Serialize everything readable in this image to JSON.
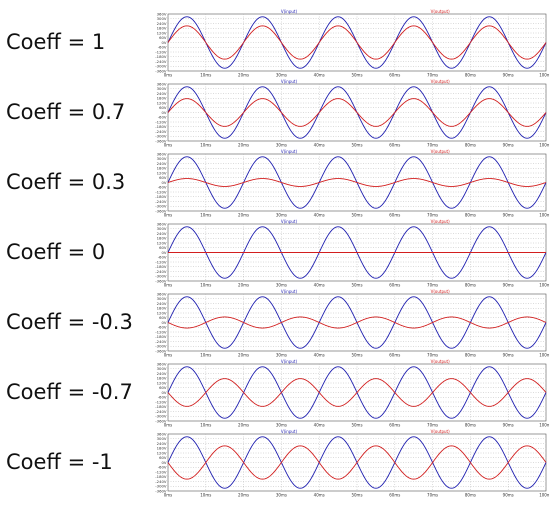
{
  "chart_data": [
    {
      "type": "line",
      "label": "Coeff = 1",
      "x_ticks": [
        "0ms",
        "10ms",
        "20ms",
        "30ms",
        "40ms",
        "50ms",
        "60ms",
        "70ms",
        "80ms",
        "90ms",
        "100ms"
      ],
      "y_ticks": [
        "360V",
        "300V",
        "240V",
        "180V",
        "120V",
        "60V",
        "0V",
        "-60V",
        "-120V",
        "-180V",
        "-240V",
        "-300V",
        "-360V"
      ],
      "xlim": [
        0,
        100
      ],
      "ylim": [
        -360,
        360
      ],
      "grid": true,
      "legend": "top",
      "series": [
        {
          "name": "V(input)",
          "color": "#1f1fb0",
          "function": "sine",
          "amplitude": 325,
          "frequency_hz": 50
        },
        {
          "name": "V(output)",
          "color": "#d21f1f",
          "function": "sine",
          "amplitude": 210,
          "frequency_hz": 50
        }
      ]
    },
    {
      "type": "line",
      "label": "Coeff = 0.7",
      "x_ticks": [
        "0ms",
        "10ms",
        "20ms",
        "30ms",
        "40ms",
        "50ms",
        "60ms",
        "70ms",
        "80ms",
        "90ms",
        "100ms"
      ],
      "y_ticks": [
        "360V",
        "300V",
        "240V",
        "180V",
        "120V",
        "60V",
        "0V",
        "-60V",
        "-120V",
        "-180V",
        "-240V",
        "-300V",
        "-360V"
      ],
      "xlim": [
        0,
        100
      ],
      "ylim": [
        -360,
        360
      ],
      "grid": true,
      "legend": "top",
      "series": [
        {
          "name": "V(input)",
          "color": "#1f1fb0",
          "function": "sine",
          "amplitude": 325,
          "frequency_hz": 50
        },
        {
          "name": "V(output)",
          "color": "#d21f1f",
          "function": "sine",
          "amplitude": 175,
          "frequency_hz": 50
        }
      ]
    },
    {
      "type": "line",
      "label": "Coeff = 0.3",
      "x_ticks": [
        "0ms",
        "10ms",
        "20ms",
        "30ms",
        "40ms",
        "50ms",
        "60ms",
        "70ms",
        "80ms",
        "90ms",
        "100ms"
      ],
      "y_ticks": [
        "360V",
        "300V",
        "240V",
        "180V",
        "120V",
        "60V",
        "0V",
        "-60V",
        "-120V",
        "-180V",
        "-240V",
        "-300V",
        "-360V"
      ],
      "xlim": [
        0,
        100
      ],
      "ylim": [
        -360,
        360
      ],
      "grid": true,
      "legend": "top",
      "series": [
        {
          "name": "V(input)",
          "color": "#1f1fb0",
          "function": "sine",
          "amplitude": 325,
          "frequency_hz": 50
        },
        {
          "name": "V(output)",
          "color": "#d21f1f",
          "function": "sine",
          "amplitude": 50,
          "frequency_hz": 50
        }
      ]
    },
    {
      "type": "line",
      "label": "Coeff = 0",
      "x_ticks": [
        "0ms",
        "10ms",
        "20ms",
        "30ms",
        "40ms",
        "50ms",
        "60ms",
        "70ms",
        "80ms",
        "90ms",
        "100ms"
      ],
      "y_ticks": [
        "360V",
        "300V",
        "240V",
        "180V",
        "120V",
        "60V",
        "0V",
        "-60V",
        "-120V",
        "-180V",
        "-240V",
        "-300V",
        "-360V"
      ],
      "xlim": [
        0,
        100
      ],
      "ylim": [
        -360,
        360
      ],
      "grid": true,
      "legend": "top",
      "series": [
        {
          "name": "V(input)",
          "color": "#1f1fb0",
          "function": "sine",
          "amplitude": 325,
          "frequency_hz": 50
        },
        {
          "name": "V(output)",
          "color": "#d21f1f",
          "function": "sine",
          "amplitude": 0,
          "frequency_hz": 50
        }
      ]
    },
    {
      "type": "line",
      "label": "Coeff = -0.3",
      "x_ticks": [
        "0ms",
        "10ms",
        "20ms",
        "30ms",
        "40ms",
        "50ms",
        "60ms",
        "70ms",
        "80ms",
        "90ms",
        "100ms"
      ],
      "y_ticks": [
        "360V",
        "300V",
        "240V",
        "180V",
        "120V",
        "60V",
        "0V",
        "-60V",
        "-120V",
        "-180V",
        "-240V",
        "-300V",
        "-360V"
      ],
      "xlim": [
        0,
        100
      ],
      "ylim": [
        -360,
        360
      ],
      "grid": true,
      "legend": "top",
      "series": [
        {
          "name": "V(input)",
          "color": "#1f1fb0",
          "function": "sine",
          "amplitude": 325,
          "frequency_hz": 50
        },
        {
          "name": "V(output)",
          "color": "#d21f1f",
          "function": "sine",
          "amplitude": -70,
          "frequency_hz": 50
        }
      ]
    },
    {
      "type": "line",
      "label": "Coeff = -0.7",
      "x_ticks": [
        "0ms",
        "10ms",
        "20ms",
        "30ms",
        "40ms",
        "50ms",
        "60ms",
        "70ms",
        "80ms",
        "90ms",
        "100ms"
      ],
      "y_ticks": [
        "360V",
        "300V",
        "240V",
        "180V",
        "120V",
        "60V",
        "0V",
        "-60V",
        "-120V",
        "-180V",
        "-240V",
        "-300V",
        "-360V"
      ],
      "xlim": [
        0,
        100
      ],
      "ylim": [
        -360,
        360
      ],
      "grid": true,
      "legend": "top",
      "series": [
        {
          "name": "V(input)",
          "color": "#1f1fb0",
          "function": "sine",
          "amplitude": 325,
          "frequency_hz": 50
        },
        {
          "name": "V(output)",
          "color": "#d21f1f",
          "function": "sine",
          "amplitude": -175,
          "frequency_hz": 50
        }
      ]
    },
    {
      "type": "line",
      "label": "Coeff = -1",
      "x_ticks": [
        "0ms",
        "10ms",
        "20ms",
        "30ms",
        "40ms",
        "50ms",
        "60ms",
        "70ms",
        "80ms",
        "90ms",
        "100ms"
      ],
      "y_ticks": [
        "360V",
        "300V",
        "240V",
        "180V",
        "120V",
        "60V",
        "0V",
        "-60V",
        "-120V",
        "-180V",
        "-240V",
        "-300V",
        "-360V"
      ],
      "xlim": [
        0,
        100
      ],
      "ylim": [
        -360,
        360
      ],
      "grid": true,
      "legend": "top",
      "series": [
        {
          "name": "V(input)",
          "color": "#1f1fb0",
          "function": "sine",
          "amplitude": 325,
          "frequency_hz": 50
        },
        {
          "name": "V(output)",
          "color": "#d21f1f",
          "function": "sine",
          "amplitude": -210,
          "frequency_hz": 50
        }
      ]
    }
  ]
}
